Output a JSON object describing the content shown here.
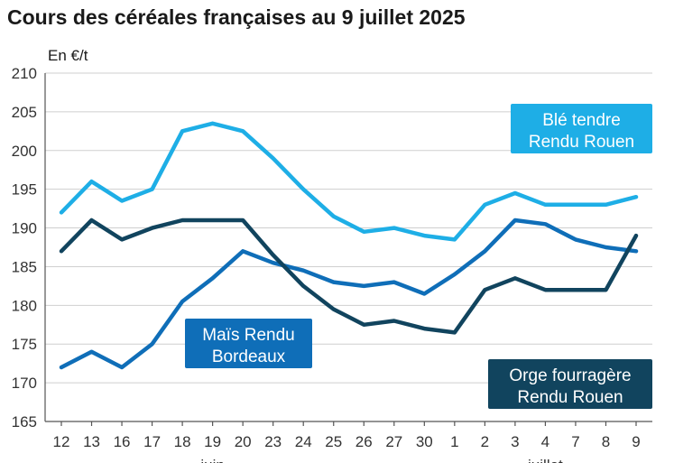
{
  "chart_data": {
    "type": "line",
    "title": "Cours des céréales françaises au 9 juillet 2025",
    "unit_label": "En €/t",
    "ylim": [
      165,
      210
    ],
    "y_ticks": [
      165,
      170,
      175,
      180,
      185,
      190,
      195,
      200,
      205,
      210
    ],
    "categories": [
      "12",
      "13",
      "16",
      "17",
      "18",
      "19",
      "20",
      "23",
      "24",
      "25",
      "26",
      "27",
      "30",
      "1",
      "2",
      "3",
      "4",
      "7",
      "8",
      "9"
    ],
    "month_labels": [
      {
        "label": "juin",
        "category_index": 5
      },
      {
        "label": "juillet",
        "category_index": 16
      }
    ],
    "series": [
      {
        "name": "Blé tendre Rendu Rouen",
        "label_lines": [
          "Blé tendre",
          "Rendu Rouen"
        ],
        "color": "#1eaee6",
        "values": [
          192,
          196,
          193.5,
          195,
          202.5,
          203.5,
          202.5,
          199,
          195,
          191.5,
          189.5,
          190,
          189,
          188.5,
          193,
          194.5,
          193,
          193,
          193,
          194
        ]
      },
      {
        "name": "Maïs Rendu Bordeaux",
        "label_lines": [
          "Maïs Rendu",
          "Bordeaux"
        ],
        "color": "#0f6eb8",
        "values": [
          172,
          174,
          172,
          175,
          180.5,
          183.5,
          187,
          185.5,
          184.5,
          183,
          182.5,
          183,
          181.5,
          184,
          187,
          191,
          190.5,
          188.5,
          187.5,
          187
        ]
      },
      {
        "name": "Orge fourragère Rendu Rouen",
        "label_lines": [
          "Orge fourragère",
          "Rendu Rouen"
        ],
        "color": "#11445e",
        "values": [
          187,
          191,
          188.5,
          190,
          191,
          191,
          191,
          186.5,
          182.5,
          179.5,
          177.5,
          178,
          177,
          176.5,
          182,
          183.5,
          182,
          182,
          182,
          189
        ]
      }
    ]
  }
}
